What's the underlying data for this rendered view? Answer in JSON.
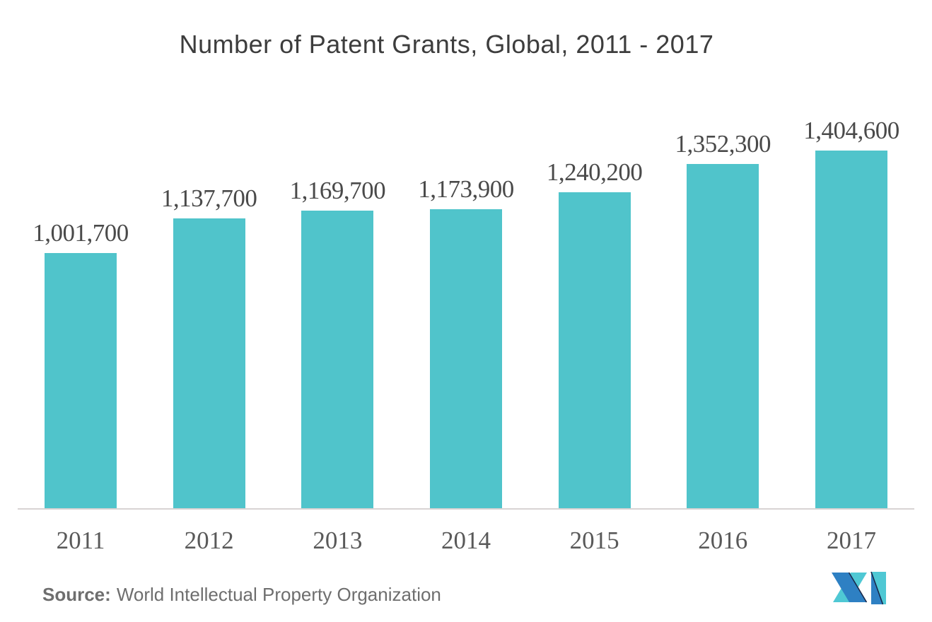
{
  "title": "Number of Patent Grants, Global, 2011 - 2017",
  "source": {
    "label": "Source:",
    "text": "World Intellectual Property Organization"
  },
  "logo": "mordor-intelligence-logo",
  "colors": {
    "bar": "#50C4CB",
    "title": "#3D3D3D",
    "label": "#4A4A4A",
    "year": "#595959",
    "axis": "#D8D3D3",
    "source": "#6E6E6E",
    "logo_blue": "#2E80C3",
    "logo_teal": "#4FC8D4",
    "logo_navy": "#19294B"
  },
  "chart_data": {
    "type": "bar",
    "title": "Number of Patent Grants, Global, 2011 - 2017",
    "categories": [
      "2011",
      "2012",
      "2013",
      "2014",
      "2015",
      "2016",
      "2017"
    ],
    "values": [
      1001700,
      1137700,
      1169700,
      1173900,
      1240200,
      1352300,
      1404600
    ],
    "labels": [
      "1,001,700",
      "1,137,700",
      "1,169,700",
      "1,173,900",
      "1,240,200",
      "1,352,300",
      "1,404,600"
    ],
    "xlabel": "",
    "ylabel": "",
    "ylim": [
      0,
      1500000
    ],
    "grid": false,
    "legend": null,
    "bar_color": "#50C4CB",
    "label_position": "above-bar",
    "baseline_axis": "x-only"
  }
}
